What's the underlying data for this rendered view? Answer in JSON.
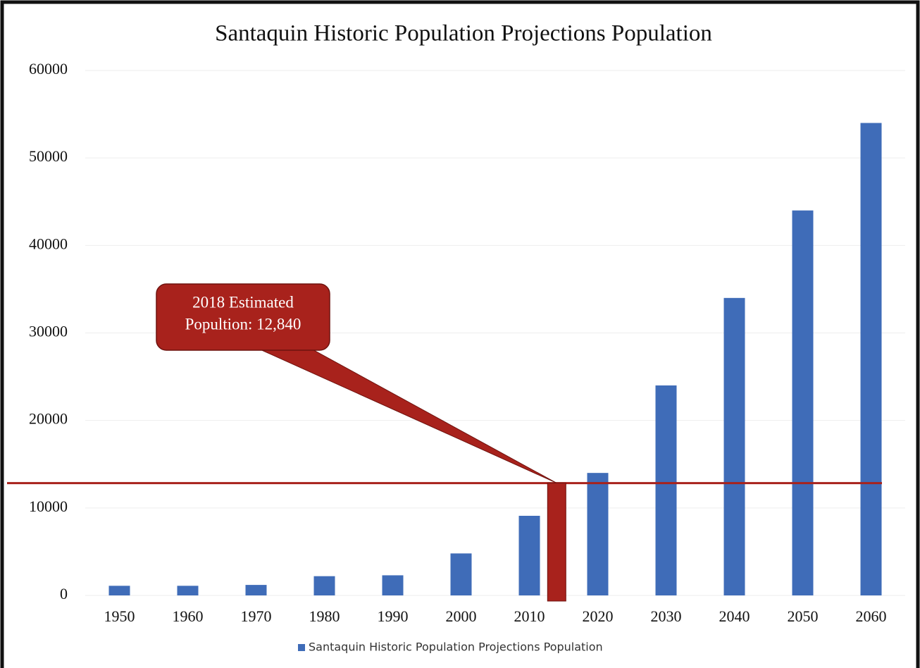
{
  "chart_data": {
    "type": "bar",
    "title": "Santaquin Historic Population Projections Population",
    "categories": [
      "1950",
      "1960",
      "1970",
      "1980",
      "1990",
      "2000",
      "2010",
      "2020",
      "2030",
      "2040",
      "2050",
      "2060"
    ],
    "series": [
      {
        "name": "Santaquin Historic Population Projections Population",
        "color": "#3f6cb8",
        "values": [
          1100,
          1100,
          1200,
          2200,
          2300,
          4800,
          9100,
          14000,
          24000,
          34000,
          44000,
          54000
        ]
      }
    ],
    "ylim": [
      0,
      60000
    ],
    "yticks": [
      0,
      10000,
      20000,
      30000,
      40000,
      50000,
      60000
    ],
    "grid": true,
    "legend": "bottom",
    "annotation": {
      "text": [
        "2018 Estimated",
        "Popultion: 12,840"
      ],
      "value": 12840,
      "color": "#a8221c"
    }
  }
}
